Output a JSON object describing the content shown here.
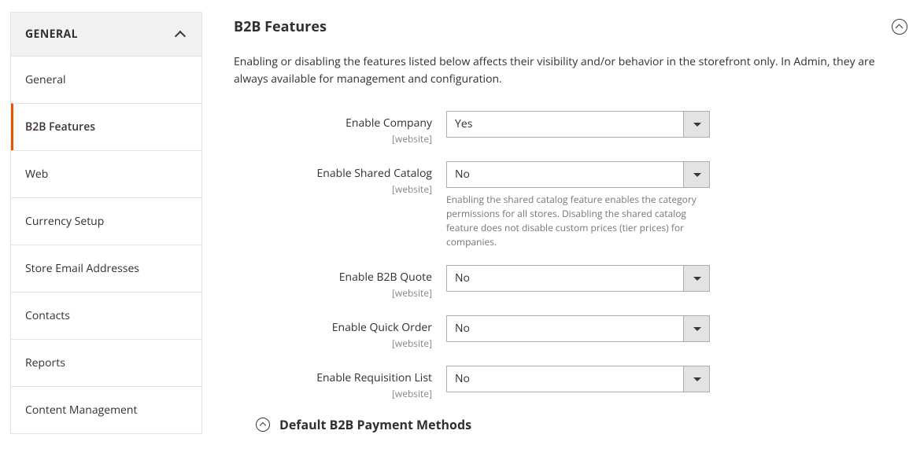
{
  "sidebar": {
    "group_label": "GENERAL",
    "items": [
      {
        "label": "General",
        "active": false
      },
      {
        "label": "B2B Features",
        "active": true
      },
      {
        "label": "Web",
        "active": false
      },
      {
        "label": "Currency Setup",
        "active": false
      },
      {
        "label": "Store Email Addresses",
        "active": false
      },
      {
        "label": "Contacts",
        "active": false
      },
      {
        "label": "Reports",
        "active": false
      },
      {
        "label": "Content Management",
        "active": false
      }
    ]
  },
  "main": {
    "title": "B2B Features",
    "intro": "Enabling or disabling the features listed below affects their visibility and/or behavior in the storefront only. In Admin, they are always available for management and configuration.",
    "scope_label": "[website]",
    "fields": {
      "enable_company": {
        "label": "Enable Company",
        "value": "Yes"
      },
      "enable_shared_catalog": {
        "label": "Enable Shared Catalog",
        "value": "No",
        "note": "Enabling the shared catalog feature enables the category permissions for all stores. Disabling the shared catalog feature does not disable custom prices (tier prices) for companies."
      },
      "enable_b2b_quote": {
        "label": "Enable B2B Quote",
        "value": "No"
      },
      "enable_quick_order": {
        "label": "Enable Quick Order",
        "value": "No"
      },
      "enable_requisition_list": {
        "label": "Enable Requisition List",
        "value": "No"
      }
    },
    "subsection_title": "Default B2B Payment Methods"
  },
  "colors": {
    "accent": "#eb5202",
    "border": "#e3e3e3",
    "panel_bg": "#f1f1f1",
    "select_btn_bg": "#e3e3e3",
    "text": "#303030",
    "muted": "#858585",
    "note": "#767676"
  }
}
